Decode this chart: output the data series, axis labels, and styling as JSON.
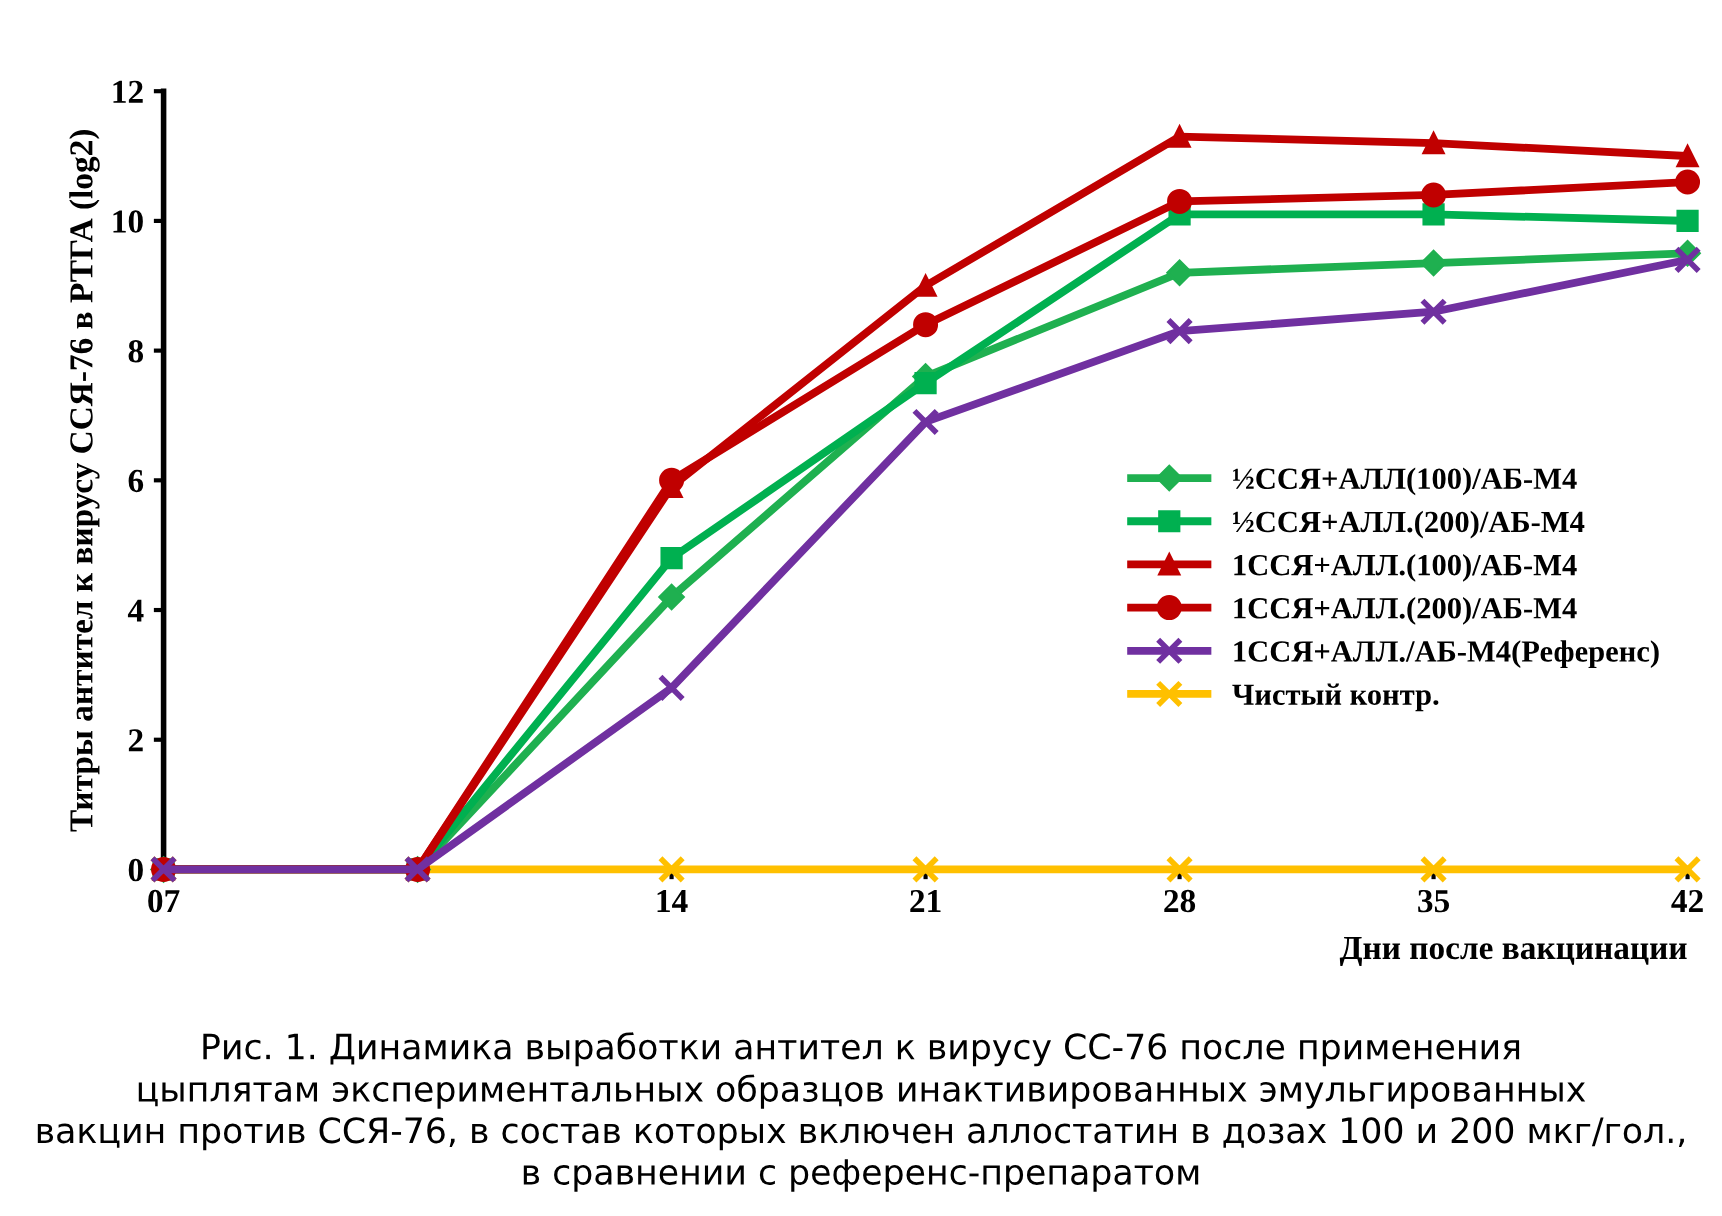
{
  "chart_data": {
    "type": "line",
    "ylabel": "Титры антител к вирусу ССЯ-76 в РТГА (log2)",
    "xlabel": "Дни после вакцинации",
    "categories": [
      "07",
      null,
      "14",
      "21",
      "28",
      "35",
      "42"
    ],
    "ylim": [
      0,
      12
    ],
    "yticks": [
      0,
      2,
      4,
      6,
      8,
      10,
      12
    ],
    "grid": false,
    "legend": "right",
    "series": [
      {
        "name": "½ССЯ+АЛЛ(100)/АБ-М4",
        "color": "#1fb050",
        "marker": "diamond",
        "values": [
          0,
          0,
          4.2,
          7.6,
          9.2,
          9.35,
          9.5
        ]
      },
      {
        "name": "½ССЯ+АЛЛ.(200)/АБ-М4",
        "color": "#00b050",
        "marker": "square",
        "values": [
          0,
          0,
          4.8,
          7.5,
          10.1,
          10.1,
          10.0
        ]
      },
      {
        "name": "1ССЯ+АЛЛ.(100)/АБ-М4",
        "color": "#c00000",
        "marker": "triangle",
        "values": [
          0,
          0,
          5.9,
          9.0,
          11.3,
          11.2,
          11.0
        ]
      },
      {
        "name": "1ССЯ+АЛЛ.(200)/АБ-М4",
        "color": "#c00000",
        "marker": "circle",
        "values": [
          0,
          0,
          6.0,
          8.4,
          10.3,
          10.4,
          10.6
        ]
      },
      {
        "name": "1ССЯ+АЛЛ./АБ-М4(Референс)",
        "color": "#7030a0",
        "marker": "cross",
        "values": [
          0,
          0,
          2.8,
          6.9,
          8.3,
          8.6,
          9.4
        ]
      },
      {
        "name": "Чистый контр.",
        "color": "#ffc000",
        "marker": "cross",
        "values": [
          0,
          0,
          0,
          0,
          0,
          0,
          0
        ]
      }
    ],
    "annotations": [
      "Рис. 1. Динамика выработки антител к вирусу СС-76 после применения\nцыплятам экспериментальных образцов инактивированных эмульгированных\nвакцин против ССЯ-76, в состав которых включен аллостатин в дозах 100 и 200 мкг/гол.,\nв сравнении с референс-препаратом"
    ]
  }
}
